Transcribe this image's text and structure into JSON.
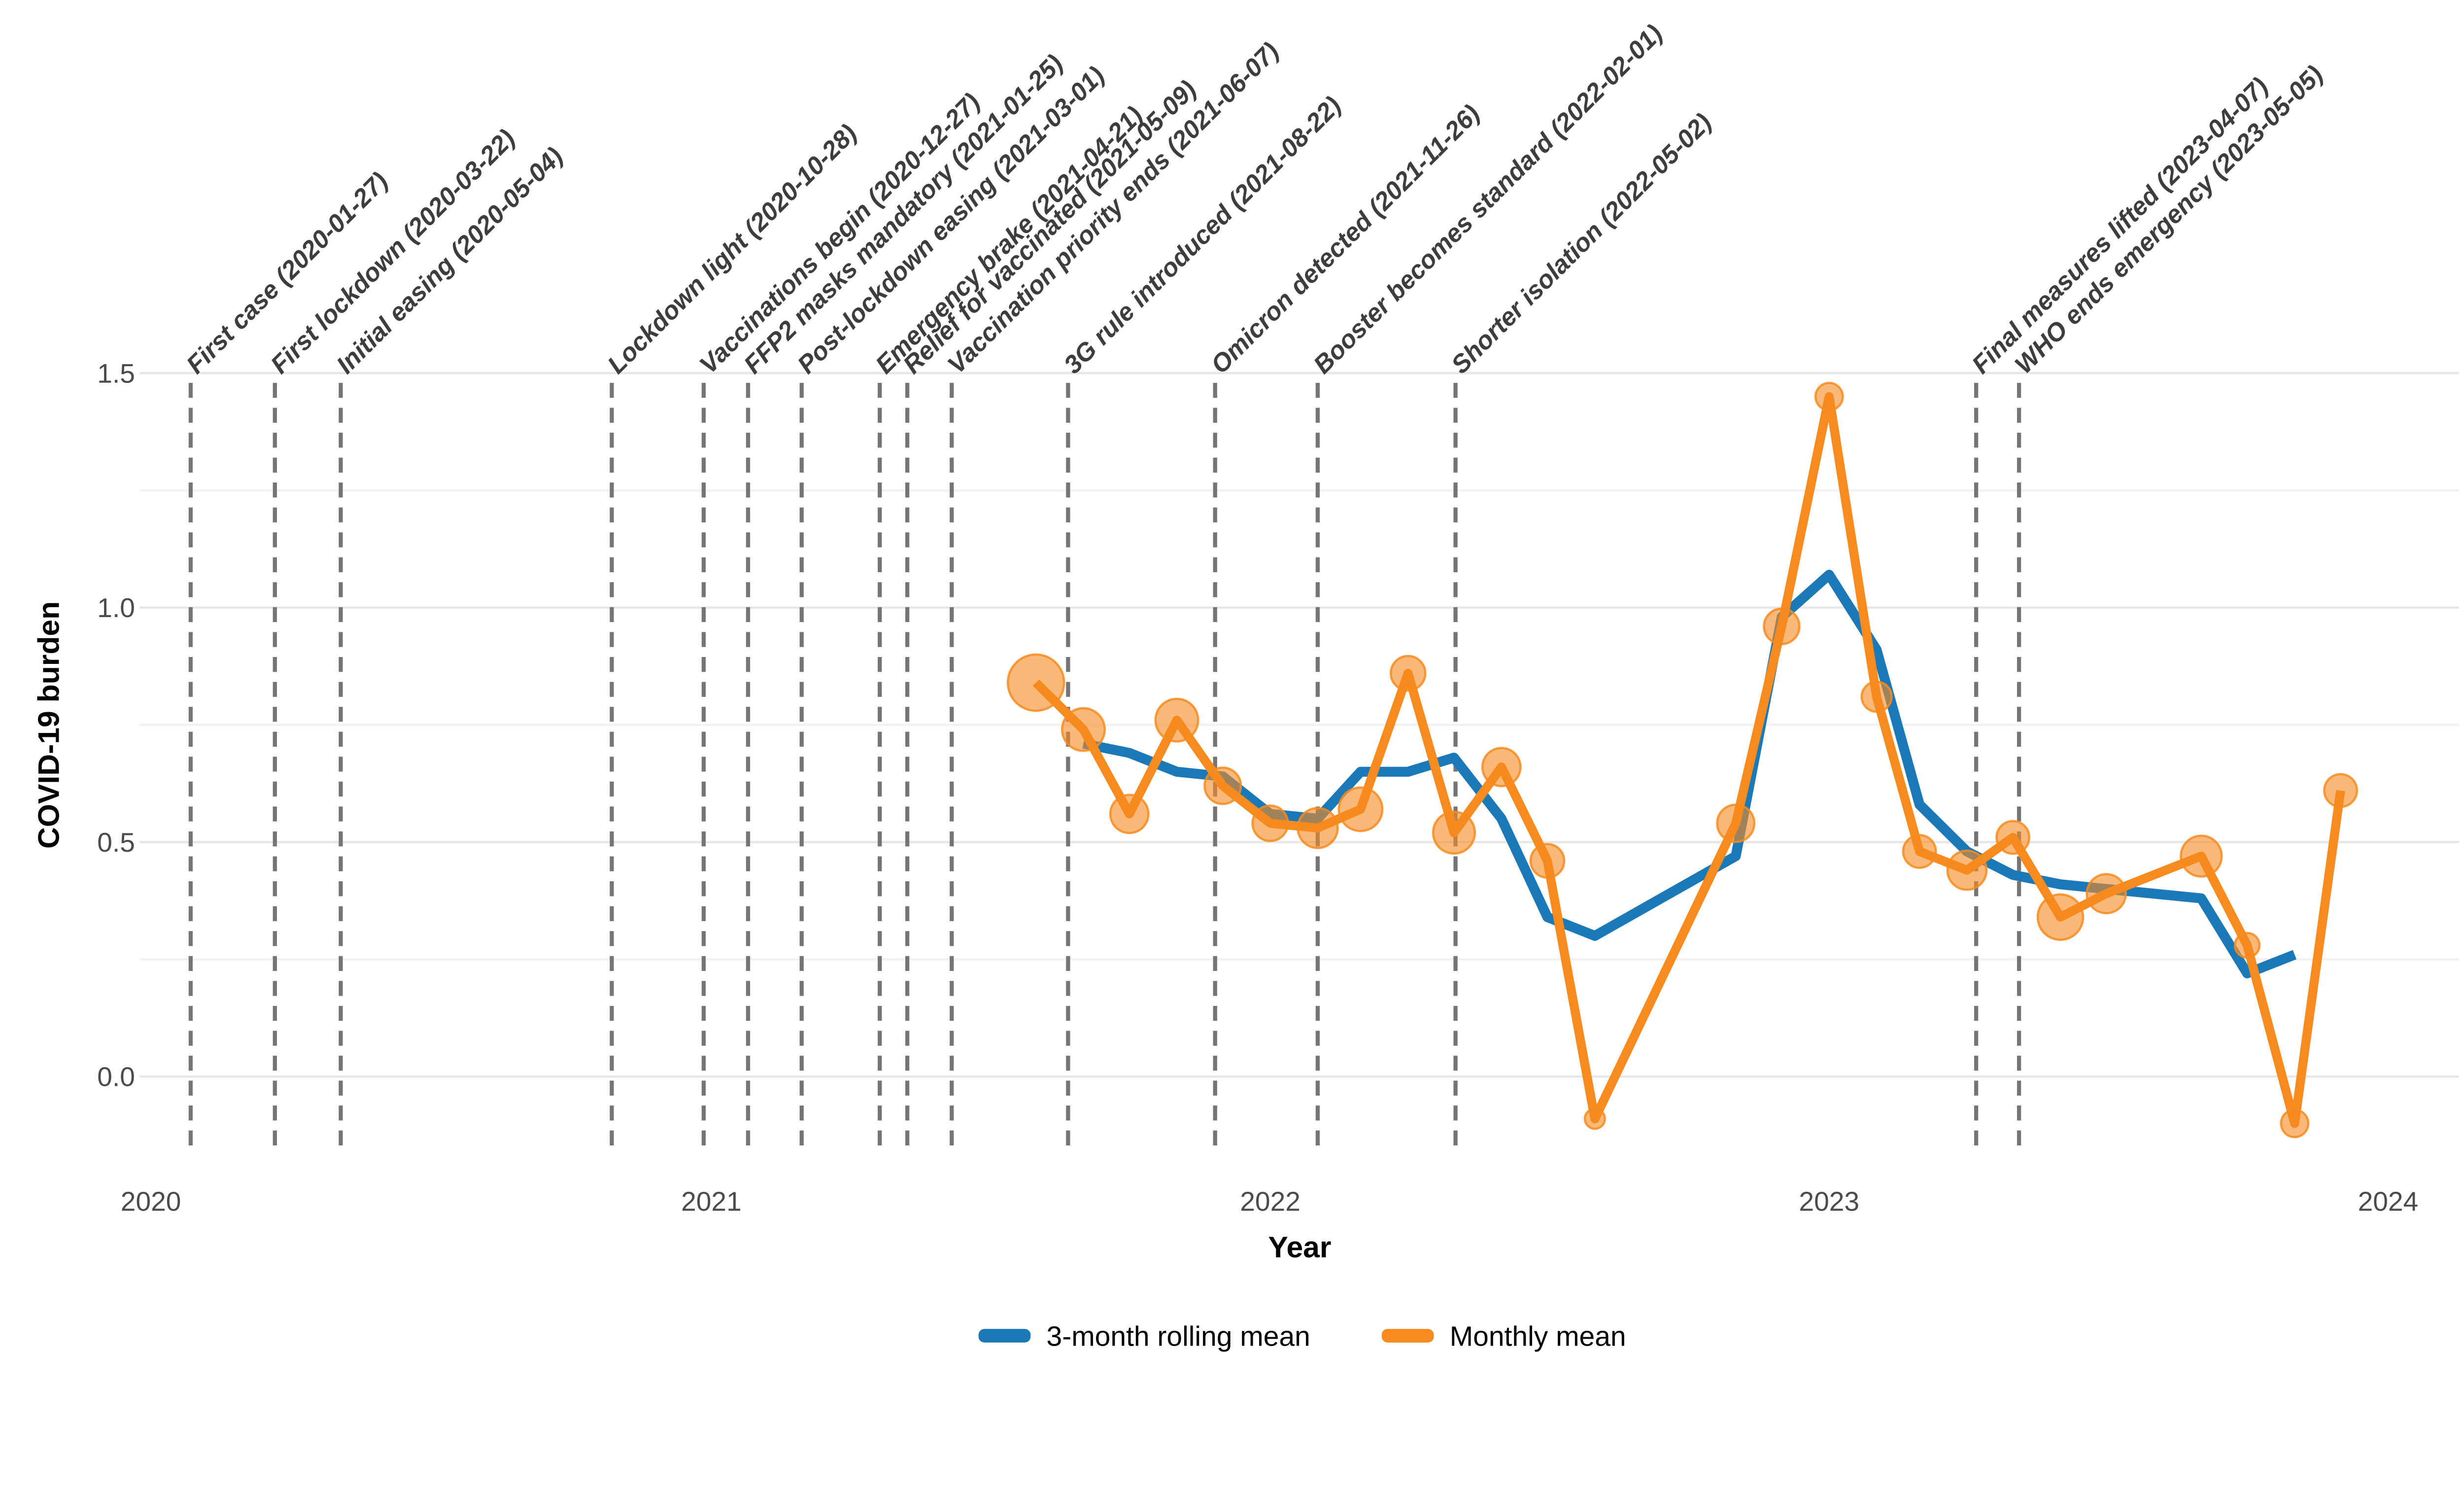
{
  "figure": {
    "background_color": "#ffffff",
    "gridline_major_color": "#e7e7e7",
    "gridline_minor_color": "#f2f2f2",
    "event_line_color": "#757575",
    "event_label_color": "#3d3d3d",
    "tick_label_color": "#4b4b4b",
    "legend": {
      "entries": [
        {
          "label": "3-month rolling mean",
          "color": "#1B79B7",
          "swatch": "line"
        },
        {
          "label": "Monthly mean",
          "color": "#F68B1F",
          "swatch": "line"
        }
      ],
      "position": "bottom-center"
    }
  },
  "chart_data": {
    "type": "line",
    "title": "",
    "xlabel": "Year",
    "ylabel": "COVID-19 burden",
    "x_tick_labels": [
      "2020",
      "2021",
      "2022",
      "2023",
      "2024"
    ],
    "x_tick_years": [
      2020,
      2021,
      2022,
      2023,
      2024
    ],
    "y_tick_labels": [
      "0.0",
      "0.5",
      "1.0",
      "1.5"
    ],
    "y_tick_values": [
      0.0,
      0.5,
      1.0,
      1.5
    ],
    "y_minor_tick_values": [
      0.25,
      0.75,
      1.25
    ],
    "ylim": [
      -0.18,
      1.55
    ],
    "xlim_years": [
      2019.97,
      2024.13
    ],
    "grid": true,
    "legend_position": "bottom",
    "series": [
      {
        "name": "3-month rolling mean",
        "color": "#1B79B7",
        "line_width": 22,
        "markers": false,
        "points": [
          {
            "month": "2021-09",
            "value": 0.71
          },
          {
            "month": "2021-10",
            "value": 0.69
          },
          {
            "month": "2021-11",
            "value": 0.65
          },
          {
            "month": "2021-12",
            "value": 0.64
          },
          {
            "month": "2022-01",
            "value": 0.56
          },
          {
            "month": "2022-02",
            "value": 0.55
          },
          {
            "month": "2022-03",
            "value": 0.65
          },
          {
            "month": "2022-04",
            "value": 0.65
          },
          {
            "month": "2022-05",
            "value": 0.68
          },
          {
            "month": "2022-06",
            "value": 0.55
          },
          {
            "month": "2022-07",
            "value": 0.34
          },
          {
            "month": "2022-08",
            "value": 0.3
          },
          {
            "month": "2022-11",
            "value": 0.47
          },
          {
            "month": "2022-12",
            "value": 0.98
          },
          {
            "month": "2023-01",
            "value": 1.07
          },
          {
            "month": "2023-02",
            "value": 0.91
          },
          {
            "month": "2023-03",
            "value": 0.58
          },
          {
            "month": "2023-04",
            "value": 0.48
          },
          {
            "month": "2023-05",
            "value": 0.43
          },
          {
            "month": "2023-06",
            "value": 0.41
          },
          {
            "month": "2023-07",
            "value": 0.4
          },
          {
            "month": "2023-09",
            "value": 0.38
          },
          {
            "month": "2023-10",
            "value": 0.22
          },
          {
            "month": "2023-11",
            "value": 0.26
          }
        ]
      },
      {
        "name": "Monthly mean",
        "color": "#F68B1F",
        "line_width": 20,
        "markers": true,
        "marker_fill_opacity": 0.6,
        "points": [
          {
            "month": "2021-08",
            "value": 0.84,
            "size": 62
          },
          {
            "month": "2021-09",
            "value": 0.74,
            "size": 47
          },
          {
            "month": "2021-10",
            "value": 0.56,
            "size": 42
          },
          {
            "month": "2021-11",
            "value": 0.76,
            "size": 47
          },
          {
            "month": "2021-12",
            "value": 0.62,
            "size": 40
          },
          {
            "month": "2022-01",
            "value": 0.54,
            "size": 39
          },
          {
            "month": "2022-02",
            "value": 0.53,
            "size": 44
          },
          {
            "month": "2022-03",
            "value": 0.57,
            "size": 48
          },
          {
            "month": "2022-04",
            "value": 0.86,
            "size": 38
          },
          {
            "month": "2022-05",
            "value": 0.52,
            "size": 46
          },
          {
            "month": "2022-06",
            "value": 0.66,
            "size": 42
          },
          {
            "month": "2022-07",
            "value": 0.46,
            "size": 37
          },
          {
            "month": "2022-08",
            "value": -0.09,
            "size": 22
          },
          {
            "month": "2022-11",
            "value": 0.54,
            "size": 41
          },
          {
            "month": "2022-12",
            "value": 0.96,
            "size": 39
          },
          {
            "month": "2023-01",
            "value": 1.45,
            "size": 30
          },
          {
            "month": "2023-02",
            "value": 0.81,
            "size": 33
          },
          {
            "month": "2023-03",
            "value": 0.48,
            "size": 36
          },
          {
            "month": "2023-04",
            "value": 0.44,
            "size": 43
          },
          {
            "month": "2023-05",
            "value": 0.51,
            "size": 36
          },
          {
            "month": "2023-06",
            "value": 0.34,
            "size": 50
          },
          {
            "month": "2023-07",
            "value": 0.39,
            "size": 43
          },
          {
            "month": "2023-09",
            "value": 0.47,
            "size": 45
          },
          {
            "month": "2023-10",
            "value": 0.28,
            "size": 27
          },
          {
            "month": "2023-11",
            "value": -0.1,
            "size": 30
          },
          {
            "month": "2023-12",
            "value": 0.61,
            "size": 36
          }
        ]
      }
    ],
    "events": [
      {
        "label": "First case (2020-01-27)",
        "date": "2020-01-27"
      },
      {
        "label": "First lockdown (2020-03-22)",
        "date": "2020-03-22"
      },
      {
        "label": "Initial easing (2020-05-04)",
        "date": "2020-05-04"
      },
      {
        "label": "Lockdown light (2020-10-28)",
        "date": "2020-10-28"
      },
      {
        "label": "Vaccinations begin (2020-12-27)",
        "date": "2020-12-27"
      },
      {
        "label": "FFP2 masks mandatory (2021-01-25)",
        "date": "2021-01-25"
      },
      {
        "label": "Post-lockdown easing (2021-03-01)",
        "date": "2021-03-01"
      },
      {
        "label": "Emergency brake (2021-04-21)",
        "date": "2021-04-21"
      },
      {
        "label": "Relief for vaccinated (2021-05-09)",
        "date": "2021-05-09"
      },
      {
        "label": "Vaccination priority ends (2021-06-07)",
        "date": "2021-06-07"
      },
      {
        "label": "3G rule introduced (2021-08-22)",
        "date": "2021-08-22"
      },
      {
        "label": "Omicron detected (2021-11-26)",
        "date": "2021-11-26"
      },
      {
        "label": "Booster becomes standard (2022-02-01)",
        "date": "2022-02-01"
      },
      {
        "label": "Shorter isolation (2022-05-02)",
        "date": "2022-05-02"
      },
      {
        "label": "Final measures lifted (2023-04-07)",
        "date": "2023-04-07"
      },
      {
        "label": "WHO ends emergency (2023-05-05)",
        "date": "2023-05-05"
      }
    ]
  }
}
